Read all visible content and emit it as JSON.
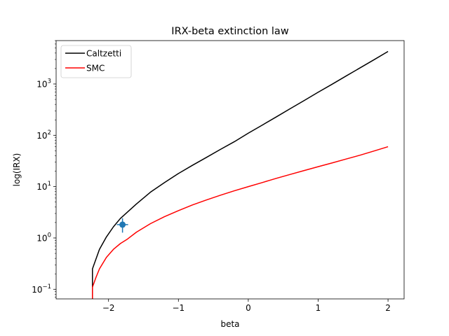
{
  "chart_data": {
    "type": "line",
    "title": "IRX-beta extinction law",
    "xlabel": "beta",
    "ylabel": "log(IRX)",
    "xlim": [
      -2.75,
      2.23
    ],
    "ylim": [
      0.065,
      7000
    ],
    "yscale": "log",
    "xticks": [
      -2,
      -1,
      0,
      1,
      2
    ],
    "xtick_labels": [
      "−2",
      "−1",
      "0",
      "1",
      "2"
    ],
    "yticks": [
      0.1,
      1,
      10,
      100,
      1000
    ],
    "ytick_labels": [
      {
        "base": "10",
        "exp": "−1"
      },
      {
        "base": "10",
        "exp": "0"
      },
      {
        "base": "10",
        "exp": "1"
      },
      {
        "base": "10",
        "exp": "2"
      },
      {
        "base": "10",
        "exp": "3"
      }
    ],
    "grid": false,
    "legend_position": "top-left",
    "series": [
      {
        "name": "Caltzetti",
        "color": "#000000",
        "x": [
          -2.23,
          -2.23,
          -2.13,
          -2.03,
          -1.93,
          -1.83,
          -1.6,
          -1.4,
          -1.2,
          -1.0,
          -0.8,
          -0.6,
          -0.4,
          -0.2,
          0.0,
          0.2,
          0.4,
          0.6,
          0.8,
          1.0,
          1.2,
          1.4,
          1.6,
          1.8,
          2.0
        ],
        "y": [
          0.06,
          0.25,
          0.6,
          1.05,
          1.65,
          2.4,
          4.6,
          7.8,
          12.0,
          18.0,
          26.0,
          37.0,
          53.0,
          75.0,
          110.0,
          158.0,
          228.0,
          330.0,
          476.0,
          690.0,
          990.0,
          1430.0,
          2060.0,
          2970.0,
          4300.0
        ]
      },
      {
        "name": "SMC",
        "color": "#ff0000",
        "x": [
          -2.23,
          -2.23,
          -2.18,
          -2.13,
          -2.03,
          -1.93,
          -1.83,
          -1.73,
          -1.6,
          -1.4,
          -1.2,
          -1.0,
          -0.8,
          -0.6,
          -0.4,
          -0.2,
          0.0,
          0.2,
          0.4,
          0.6,
          0.8,
          1.0,
          1.2,
          1.4,
          1.6,
          1.8,
          2.0
        ],
        "y": [
          0.06,
          0.11,
          0.17,
          0.25,
          0.42,
          0.6,
          0.78,
          0.95,
          1.3,
          1.9,
          2.6,
          3.4,
          4.4,
          5.5,
          6.8,
          8.3,
          10.0,
          12.0,
          14.5,
          17.3,
          20.6,
          24.5,
          29.0,
          34.5,
          41.0,
          49.5,
          60.0
        ]
      }
    ],
    "points": [
      {
        "x": -1.8,
        "y": 1.82,
        "xerr": 0.08,
        "yerr_low": 0.55,
        "yerr_high": 0.6,
        "color": "#1f77b4"
      }
    ]
  }
}
